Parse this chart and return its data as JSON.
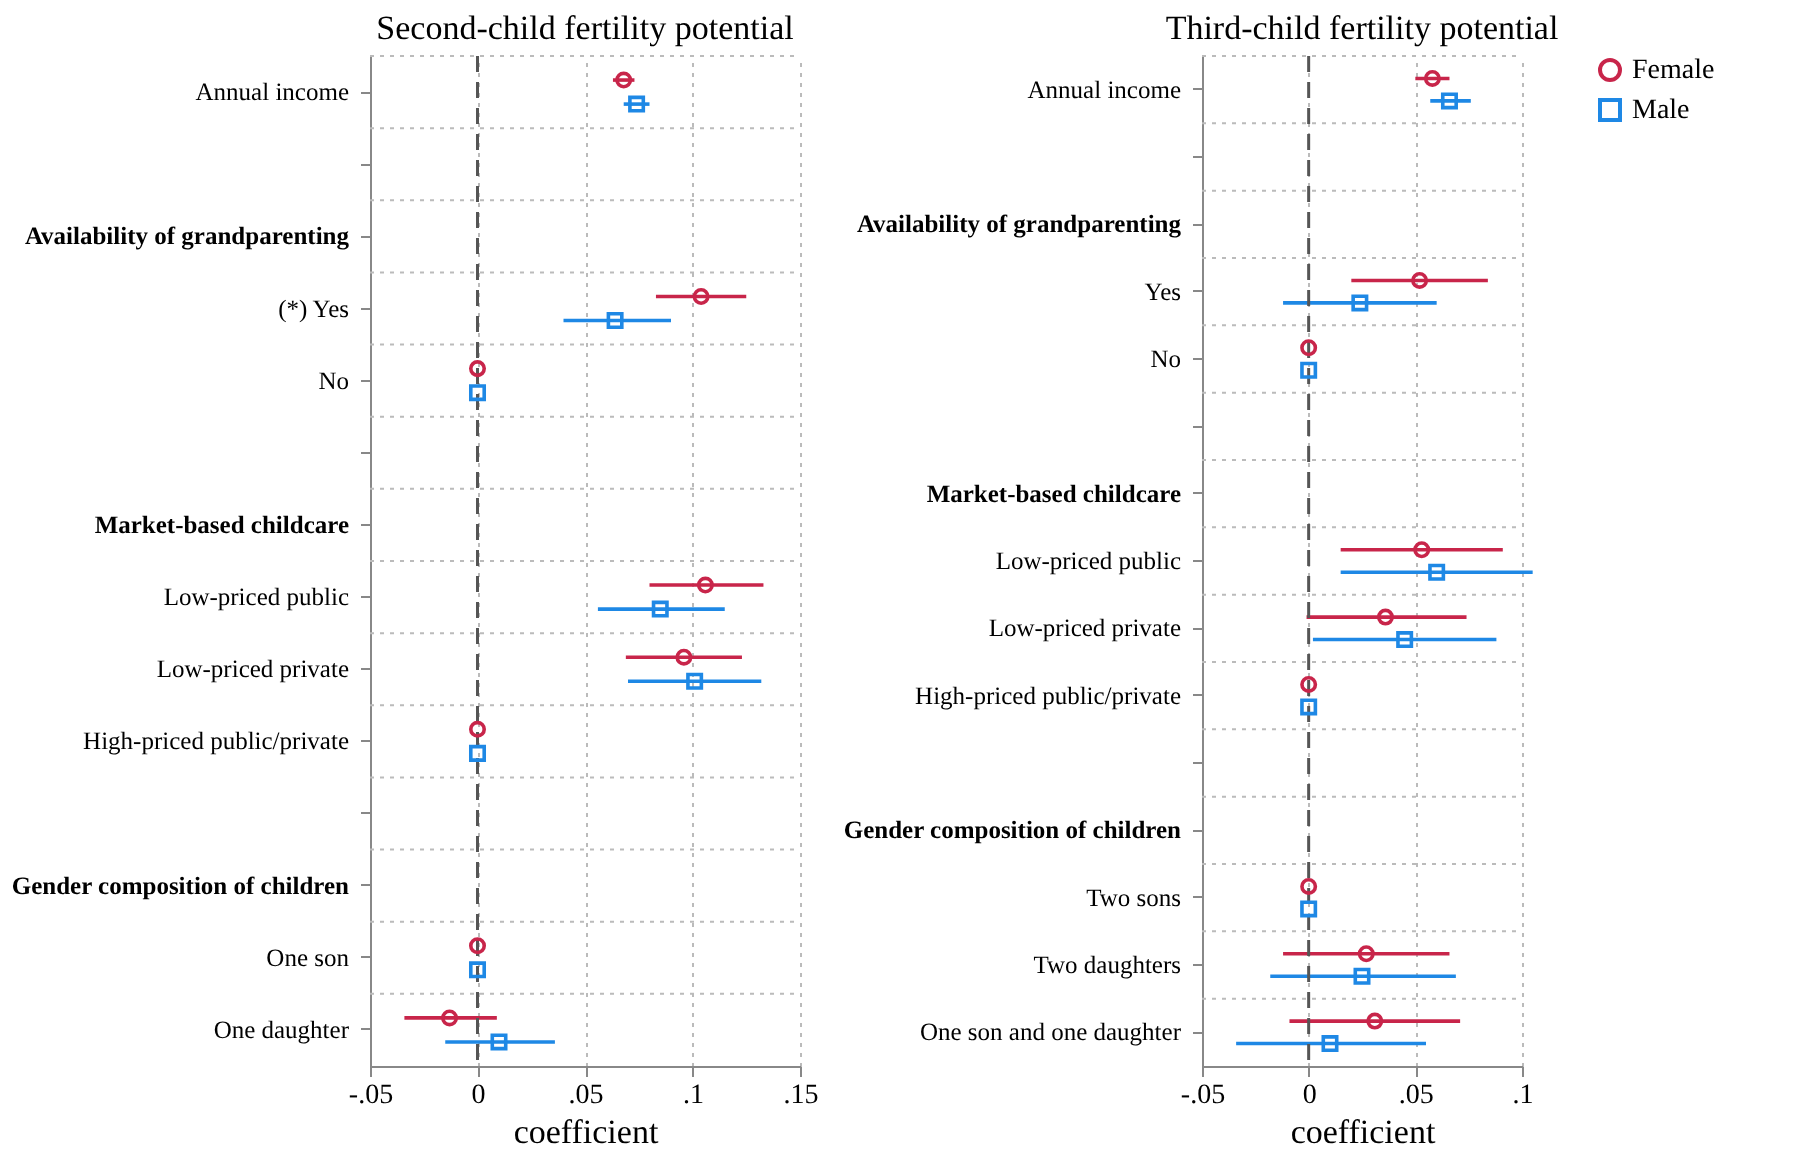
{
  "chart_data": [
    {
      "type": "scatter",
      "title": "Second-child fertility potential",
      "xlabel": "coefficient",
      "categories": [
        "Annual income",
        null,
        "Availability of grandparenting",
        "(*) Yes",
        "No",
        null,
        "Market-based childcare",
        "Low-priced public",
        "Low-priced private",
        "High-priced public/private",
        null,
        "Gender composition of children",
        "One son",
        "One daughter"
      ],
      "series": [
        {
          "name": "Female",
          "color": "#c8254a",
          "marker": "circle",
          "values": [
            0.068,
            null,
            null,
            0.104,
            0,
            null,
            null,
            0.106,
            0.096,
            0,
            null,
            null,
            0,
            -0.013
          ],
          "errors": [
            [
              0.063,
              0.073
            ],
            null,
            null,
            [
              0.083,
              0.125
            ],
            null,
            null,
            null,
            [
              0.08,
              0.133
            ],
            [
              0.069,
              0.123
            ],
            null,
            null,
            null,
            null,
            [
              -0.034,
              0.009
            ]
          ]
        },
        {
          "name": "Male",
          "color": "#1e88e5",
          "marker": "square",
          "values": [
            0.074,
            null,
            null,
            0.064,
            0,
            null,
            null,
            0.085,
            0.101,
            0,
            null,
            null,
            0,
            0.01
          ],
          "errors": [
            [
              0.068,
              0.08
            ],
            null,
            null,
            [
              0.04,
              0.09
            ],
            null,
            null,
            null,
            [
              0.056,
              0.115
            ],
            [
              0.07,
              0.132
            ],
            null,
            null,
            null,
            null,
            [
              -0.015,
              0.036
            ]
          ]
        }
      ],
      "orientation": "horizontal",
      "xlim": [
        -0.05,
        0.15
      ],
      "xticks": [
        {
          "value": -0.05,
          "label": "-.05"
        },
        0,
        {
          "value": 0.05,
          "label": ".05"
        },
        {
          "value": 0.1,
          "label": ".1"
        },
        {
          "value": 0.15,
          "label": ".15"
        }
      ],
      "ref_lines": [
        {
          "axis": "x",
          "value": 0,
          "line_style": "dashed",
          "color": "#555555"
        }
      ],
      "grid": true,
      "legend": "right"
    },
    {
      "type": "scatter",
      "title": "Third-child fertility potential",
      "xlabel": "coefficient",
      "categories": [
        "Annual income",
        null,
        "Availability of grandparenting",
        "Yes",
        "No",
        null,
        "Market-based childcare",
        "Low-priced public",
        "Low-priced private",
        "High-priced public/private",
        null,
        "Gender composition of children",
        "Two sons",
        "Two daughters",
        "One son and one daughter"
      ],
      "series": [
        {
          "name": "Female",
          "color": "#c8254a",
          "marker": "circle",
          "values": [
            0.058,
            null,
            null,
            0.052,
            0,
            null,
            null,
            0.053,
            0.036,
            0,
            null,
            null,
            0,
            0.027,
            0.031
          ],
          "errors": [
            [
              0.05,
              0.066
            ],
            null,
            null,
            [
              0.02,
              0.084
            ],
            null,
            null,
            null,
            [
              0.015,
              0.091
            ],
            [
              -0.001,
              0.074
            ],
            null,
            null,
            null,
            null,
            [
              -0.012,
              0.066
            ],
            [
              -0.009,
              0.071
            ]
          ]
        },
        {
          "name": "Male",
          "color": "#1e88e5",
          "marker": "square",
          "values": [
            0.066,
            null,
            null,
            0.024,
            0,
            null,
            null,
            0.06,
            0.045,
            0,
            null,
            null,
            0,
            0.025,
            0.01
          ],
          "errors": [
            [
              0.057,
              0.076
            ],
            null,
            null,
            [
              -0.012,
              0.06
            ],
            null,
            null,
            null,
            [
              0.015,
              0.105
            ],
            [
              0.002,
              0.088
            ],
            null,
            null,
            null,
            null,
            [
              -0.018,
              0.069
            ],
            [
              -0.034,
              0.055
            ]
          ]
        }
      ],
      "orientation": "horizontal",
      "xlim": [
        -0.05,
        0.1
      ],
      "xticks": [
        {
          "value": -0.05,
          "label": "-.05"
        },
        0,
        {
          "value": 0.05,
          "label": ".05"
        },
        {
          "value": 0.1,
          "label": ".1"
        }
      ],
      "ref_lines": [
        {
          "axis": "x",
          "value": 0,
          "line_style": "dashed",
          "color": "#555555"
        }
      ],
      "grid": true,
      "legend": "right"
    }
  ]
}
